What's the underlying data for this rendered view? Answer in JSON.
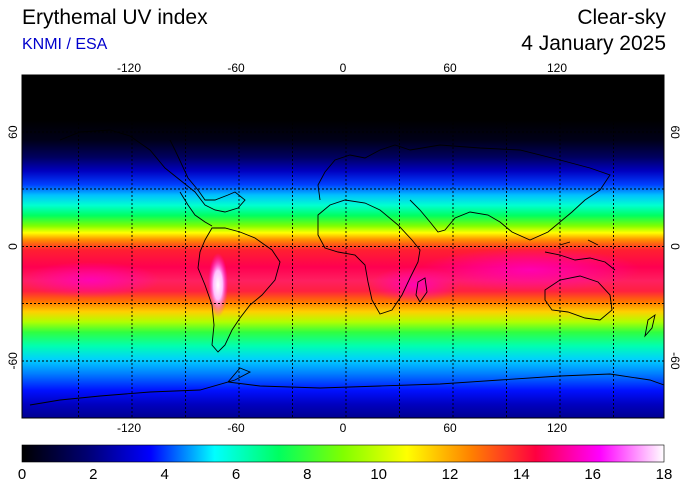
{
  "header": {
    "title": "Erythemal UV index",
    "credit": "KNMI / ESA",
    "mode": "Clear-sky",
    "date": "4 January 2025"
  },
  "map": {
    "lon_ticks": [
      "-120",
      "-60",
      "0",
      "60",
      "120"
    ],
    "lat_ticks": [
      "60",
      "0",
      "-60"
    ],
    "lon_values": [
      -120,
      -60,
      0,
      60,
      120
    ],
    "lat_values": [
      60,
      0,
      -60
    ],
    "lon_range": [
      -180,
      180
    ],
    "lat_range": [
      -90,
      90
    ],
    "grid": true,
    "uv_max_region": "Andes / South America"
  },
  "colorbar": {
    "labels": [
      "0",
      "2",
      "4",
      "6",
      "8",
      "10",
      "12",
      "14",
      "16",
      "18"
    ],
    "values": [
      0,
      2,
      4,
      6,
      8,
      10,
      12,
      14,
      16,
      18
    ],
    "stops": [
      "#000000",
      "#000070",
      "#0000ff",
      "#00ffff",
      "#00ff60",
      "#80ff00",
      "#ffff00",
      "#ff8000",
      "#ff0040",
      "#ff00ff",
      "#ffffff"
    ]
  }
}
